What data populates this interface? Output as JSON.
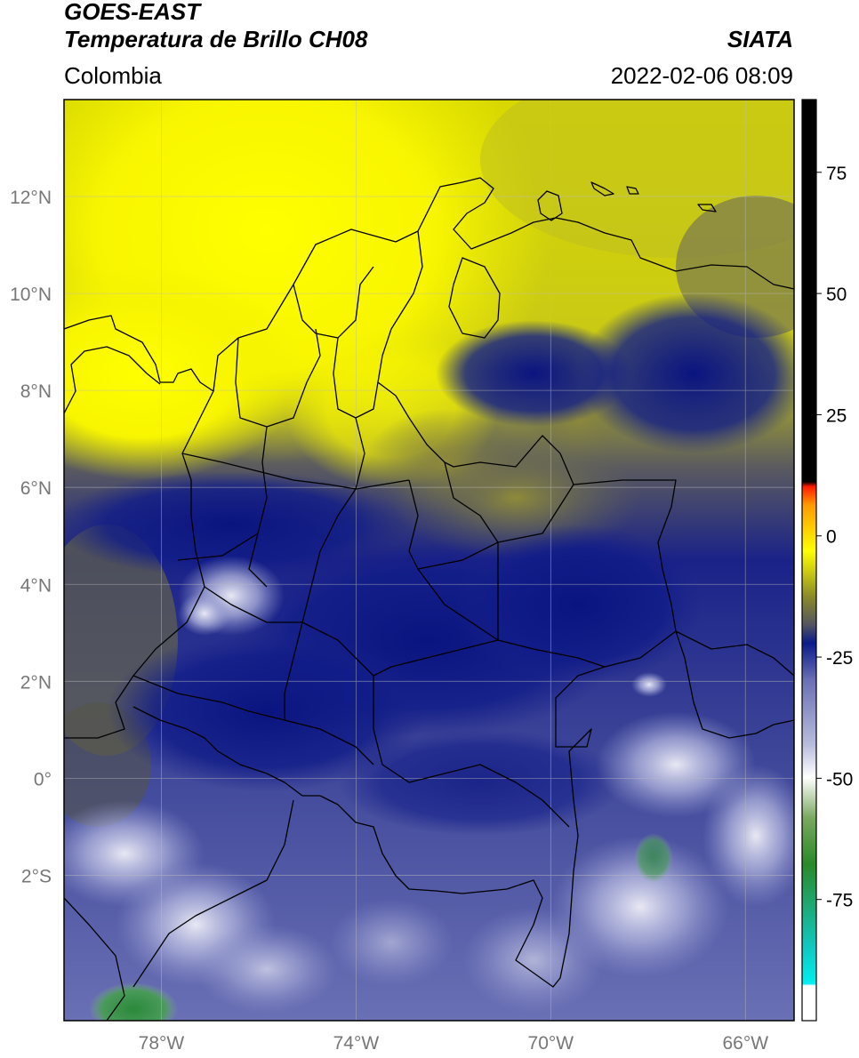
{
  "header": {
    "satellite": "GOES-EAST",
    "product": "Temperatura de Brillo CH08",
    "region": "Colombia",
    "agency": "SIATA",
    "datetime": "2022-02-06 08:09"
  },
  "map": {
    "lon_range": [
      -80,
      -65
    ],
    "lat_range": [
      -5,
      14
    ],
    "lon_ticks": [
      {
        "value": -78,
        "label": "78°W"
      },
      {
        "value": -74,
        "label": "74°W"
      },
      {
        "value": -70,
        "label": "70°W"
      },
      {
        "value": -66,
        "label": "66°W"
      }
    ],
    "lat_ticks": [
      {
        "value": 12,
        "label": "12°N"
      },
      {
        "value": 10,
        "label": "10°N"
      },
      {
        "value": 8,
        "label": "8°N"
      },
      {
        "value": 6,
        "label": "6°N"
      },
      {
        "value": 4,
        "label": "4°N"
      },
      {
        "value": 2,
        "label": "2°N"
      },
      {
        "value": 0,
        "label": "0°"
      },
      {
        "value": -2,
        "label": "2°S"
      }
    ],
    "grid": true
  },
  "colorbar": {
    "range": [
      -100,
      90
    ],
    "ticks": [
      {
        "value": 75,
        "label": "75"
      },
      {
        "value": 50,
        "label": "50"
      },
      {
        "value": 25,
        "label": "25"
      },
      {
        "value": 0,
        "label": "0"
      },
      {
        "value": -25,
        "label": "-25"
      },
      {
        "value": -50,
        "label": "-50"
      },
      {
        "value": -75,
        "label": "-75"
      }
    ],
    "colors": {
      "black": "#000000",
      "red": "#ff1a00",
      "orange": "#ff9a00",
      "yellow": "#ffff00",
      "olive": "#8a8a2a",
      "navy": "#0a1a8a",
      "periwinkle": "#8a90c8",
      "white": "#ffffff",
      "green": "#2a8a2a",
      "teal": "#10c8c0",
      "cyan": "#00f0f0"
    }
  }
}
